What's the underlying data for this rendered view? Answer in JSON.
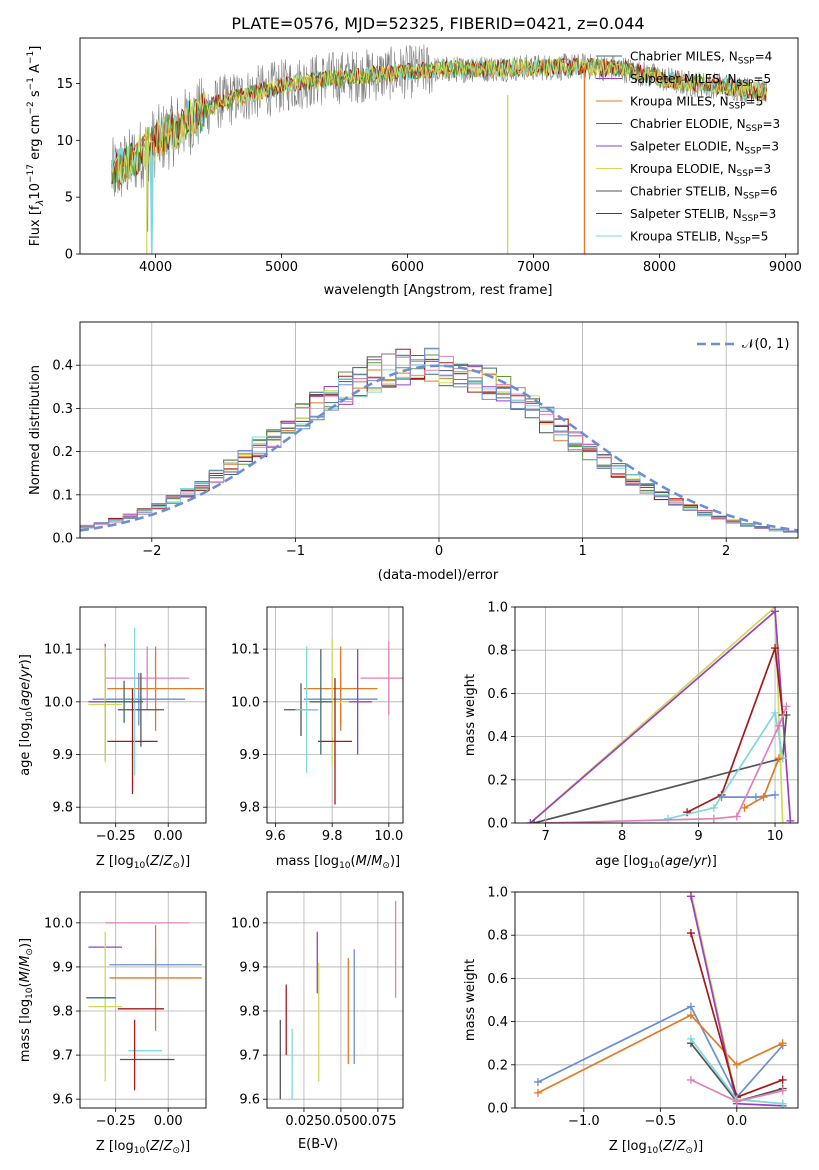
{
  "title": "PLATE=0576, MJD=52325, FIBERID=0421, z=0.044",
  "colors": {
    "blue": "#6a8fd6",
    "orange": "#e07b27",
    "teal": "#3f6f6f",
    "purple": "#9a3fc2",
    "yellow": "#cfd95a",
    "darkgray": "#555555",
    "red": "#a31a1a",
    "pink": "#e080b8",
    "cyan": "#7dd9dc",
    "grayspec": "#808080",
    "green": "#5a9a3a",
    "lime": "#b8d85a"
  },
  "chart_data": [
    {
      "id": "spectrum",
      "type": "line",
      "xlabel": "wavelength [Angstrom, rest frame]",
      "ylabel": "Flux [f_λ 10^-17 erg cm^-2 s^-1 A^-1]",
      "ylabel_parts": [
        "Flux [f",
        "λ",
        "10",
        "−17",
        " erg cm",
        "−2",
        " s",
        "−1",
        " A",
        "−1",
        "]"
      ],
      "xlim": [
        3400,
        9100
      ],
      "ylim": [
        0,
        19
      ],
      "xticks": [
        "4000",
        "5000",
        "6000",
        "7000",
        "8000",
        "9000"
      ],
      "yticks": [
        "0",
        "5",
        "10",
        "15"
      ],
      "legend_placement": "top-right",
      "legend": [
        {
          "pre": "Chabrier MILES, N",
          "sub": "SSP",
          "post": "=4",
          "color": "#3f6f6f"
        },
        {
          "pre": "Salpeter MILES, N",
          "sub": "SSP",
          "post": "=5",
          "color": "#9a3fc2"
        },
        {
          "pre": "Kroupa MILES, N",
          "sub": "SSP",
          "post": "=5",
          "color": "#e07b27"
        },
        {
          "pre": "Chabrier ELODIE, N",
          "sub": "SSP",
          "post": "=3",
          "color": "#3f6f6f"
        },
        {
          "pre": "Salpeter ELODIE, N",
          "sub": "SSP",
          "post": "=3",
          "color": "#9a3fc2"
        },
        {
          "pre": "Kroupa ELODIE, N",
          "sub": "SSP",
          "post": "=3",
          "color": "#cfd95a"
        },
        {
          "pre": "Chabrier STELIB, N",
          "sub": "SSP",
          "post": "=6",
          "color": "#555555"
        },
        {
          "pre": "Salpeter STELIB, N",
          "sub": "SSP",
          "post": "=3",
          "color": "#a31a1a"
        },
        {
          "pre": "Kroupa STELIB, N",
          "sub": "SSP",
          "post": "=5",
          "color": "#7dd9dc"
        }
      ],
      "continuum": [
        [
          3650,
          7
        ],
        [
          3800,
          8
        ],
        [
          3950,
          9.5
        ],
        [
          4100,
          10.5
        ],
        [
          4300,
          12
        ],
        [
          4500,
          13.3
        ],
        [
          4800,
          14.2
        ],
        [
          5100,
          15
        ],
        [
          5400,
          15.5
        ],
        [
          5800,
          15.8
        ],
        [
          6200,
          16.2
        ],
        [
          6600,
          16.3
        ],
        [
          7000,
          16.4
        ],
        [
          7400,
          16.5
        ],
        [
          7700,
          16.3
        ],
        [
          8000,
          15.5
        ],
        [
          8200,
          15
        ],
        [
          8500,
          14.8
        ],
        [
          8850,
          14.2
        ]
      ]
    },
    {
      "id": "residuals",
      "type": "histogram",
      "xlabel": "(data-model)/error",
      "ylabel": "Normed distribution",
      "xlim": [
        -2.5,
        2.5
      ],
      "ylim": [
        0,
        0.5
      ],
      "xticks": [
        "−2",
        "−1",
        "0",
        "1",
        "2"
      ],
      "yticks": [
        "0.0",
        "0.1",
        "0.2",
        "0.3",
        "0.4"
      ],
      "legend": "𝒩(0, 1)",
      "legend_placement": "top-right",
      "reference_curve": "N(0,1)",
      "bin_start": -2.5,
      "bin_width": 0.1
    },
    {
      "id": "age-vs-Z",
      "type": "errorbar",
      "xlabel": "Z [log10(Z/Z⊙)]",
      "ylabel": "age [log10(age/yr)]",
      "xlim": [
        -0.42,
        0.18
      ],
      "ylim": [
        9.77,
        10.18
      ],
      "xticks": [
        "−0.25",
        "0.00"
      ],
      "yticks": [
        "9.8",
        "9.9",
        "10.0",
        "10.1"
      ],
      "points": [
        {
          "x": -0.1,
          "y": 10.045,
          "xerr": 0.2,
          "yerr": 0.06,
          "color": "#e080b8"
        },
        {
          "x": -0.14,
          "y": 10.005,
          "xerr": 0.22,
          "yerr": 0.05,
          "color": "#6a8fd6"
        },
        {
          "x": -0.06,
          "y": 10.025,
          "xerr": 0.23,
          "yerr": 0.08,
          "color": "#e07b27"
        },
        {
          "x": -0.3,
          "y": 10.0,
          "xerr": 0.08,
          "yerr": 0.11,
          "color": "#9a3fc2"
        },
        {
          "x": -0.3,
          "y": 9.995,
          "xerr": 0.08,
          "yerr": 0.11,
          "color": "#cfd95a"
        },
        {
          "x": -0.13,
          "y": 9.985,
          "xerr": 0.11,
          "yerr": 0.07,
          "color": "#555555"
        },
        {
          "x": -0.17,
          "y": 9.925,
          "xerr": 0.12,
          "yerr": 0.1,
          "color": "#a31a1a"
        },
        {
          "x": -0.16,
          "y": 10.0,
          "xerr": 0.04,
          "yerr": 0.14,
          "color": "#7dd9dc"
        },
        {
          "x": -0.21,
          "y": 10.0,
          "xerr": 0.09,
          "yerr": 0.04,
          "color": "#3f6f6f"
        }
      ]
    },
    {
      "id": "age-vs-mass",
      "type": "errorbar",
      "xlabel": "mass [log10(M/M⊙)]",
      "ylabel": "",
      "xlim": [
        9.57,
        10.05
      ],
      "ylim": [
        9.77,
        10.18
      ],
      "xticks": [
        "9.6",
        "9.8",
        "10.0"
      ],
      "yticks": [
        "9.8",
        "9.9",
        "10.0",
        "10.1"
      ],
      "points": [
        {
          "x": 10.0,
          "y": 10.045,
          "xerr": 0.1,
          "yerr": 0.07,
          "color": "#e080b8"
        },
        {
          "x": 9.83,
          "y": 10.005,
          "xerr": 0.13,
          "yerr": 0.05,
          "color": "#6a8fd6"
        },
        {
          "x": 9.83,
          "y": 10.025,
          "xerr": 0.13,
          "yerr": 0.08,
          "color": "#e07b27"
        },
        {
          "x": 9.89,
          "y": 10.0,
          "xerr": 0.05,
          "yerr": 0.1,
          "color": "#9a3fc2"
        },
        {
          "x": 9.8,
          "y": 10.0,
          "xerr": 0.06,
          "yerr": 0.12,
          "color": "#cfd95a"
        },
        {
          "x": 9.69,
          "y": 9.985,
          "xerr": 0.06,
          "yerr": 0.05,
          "color": "#555555"
        },
        {
          "x": 9.81,
          "y": 9.925,
          "xerr": 0.06,
          "yerr": 0.12,
          "color": "#a31a1a"
        },
        {
          "x": 9.71,
          "y": 9.985,
          "xerr": 0.04,
          "yerr": 0.12,
          "color": "#7dd9dc"
        },
        {
          "x": 9.76,
          "y": 10.0,
          "xerr": 0.04,
          "yerr": 0.1,
          "color": "#3f6f6f"
        }
      ]
    },
    {
      "id": "weight-vs-age",
      "type": "line",
      "xlabel": "age [log10(age/yr)]",
      "ylabel": "mass weight",
      "xlim": [
        6.6,
        10.3
      ],
      "ylim": [
        0,
        1
      ],
      "xticks": [
        "7",
        "8",
        "9",
        "10"
      ],
      "yticks": [
        "0.0",
        "0.2",
        "0.4",
        "0.6",
        "0.8",
        "1.0"
      ],
      "series": [
        {
          "color": "#cfd95a",
          "points": [
            [
              6.8,
              0
            ],
            [
              10.0,
              1.0
            ],
            [
              10.1,
              0
            ]
          ]
        },
        {
          "color": "#9a3fc2",
          "points": [
            [
              6.8,
              0
            ],
            [
              10.0,
              0.98
            ],
            [
              10.2,
              0.01
            ]
          ]
        },
        {
          "color": "#555555",
          "points": [
            [
              6.85,
              0
            ],
            [
              10.1,
              0.3
            ],
            [
              10.15,
              0.5
            ]
          ]
        },
        {
          "color": "#a31a1a",
          "points": [
            [
              8.85,
              0.05
            ],
            [
              9.3,
              0.13
            ],
            [
              10.0,
              0.81
            ],
            [
              10.1,
              0.5
            ]
          ]
        },
        {
          "color": "#7dd9dc",
          "points": [
            [
              8.6,
              0.02
            ],
            [
              9.2,
              0.07
            ],
            [
              10.0,
              0.51
            ],
            [
              10.1,
              0.3
            ]
          ]
        },
        {
          "color": "#6a8fd6",
          "points": [
            [
              9.3,
              0.12
            ],
            [
              9.75,
              0.12
            ],
            [
              10.0,
              0.13
            ]
          ]
        },
        {
          "color": "#e07b27",
          "points": [
            [
              9.6,
              0.07
            ],
            [
              9.85,
              0.12
            ],
            [
              10.05,
              0.3
            ]
          ]
        },
        {
          "color": "#e080b8",
          "points": [
            [
              7.0,
              0
            ],
            [
              9.2,
              0.02
            ],
            [
              9.5,
              0.03
            ],
            [
              10.05,
              0.45
            ],
            [
              10.15,
              0.54
            ]
          ]
        }
      ]
    },
    {
      "id": "mass-vs-Z",
      "type": "errorbar",
      "xlabel": "Z [log10(Z/Z⊙)]",
      "ylabel": "mass [log10(M/M⊙)]",
      "xlim": [
        -0.42,
        0.18
      ],
      "ylim": [
        9.58,
        10.07
      ],
      "xticks": [
        "−0.25",
        "0.00"
      ],
      "yticks": [
        "9.6",
        "9.7",
        "9.8",
        "9.9",
        "10.0"
      ],
      "points": [
        {
          "x": -0.1,
          "y": 10.0,
          "xerr": 0.2,
          "yerr": 0.0,
          "color": "#e080b8"
        },
        {
          "x": -0.06,
          "y": 9.905,
          "xerr": 0.22,
          "yerr": 0.04,
          "color": "#6a8fd6"
        },
        {
          "x": -0.06,
          "y": 9.875,
          "xerr": 0.22,
          "yerr": 0.12,
          "color": "#e07b27"
        },
        {
          "x": -0.3,
          "y": 9.945,
          "xerr": 0.08,
          "yerr": 0.0,
          "color": "#9a3fc2"
        },
        {
          "x": -0.3,
          "y": 9.81,
          "xerr": 0.08,
          "yerr": 0.17,
          "color": "#cfd95a"
        },
        {
          "x": -0.32,
          "y": 9.83,
          "xerr": 0.07,
          "yerr": 0.0,
          "color": "#3f6f6f"
        },
        {
          "x": -0.13,
          "y": 9.805,
          "xerr": 0.11,
          "yerr": 0.0,
          "color": "#a31a1a"
        },
        {
          "x": -0.11,
          "y": 9.71,
          "xerr": 0.08,
          "yerr": 0.0,
          "color": "#7dd9dc"
        },
        {
          "x": -0.1,
          "y": 9.69,
          "xerr": 0.13,
          "yerr": 0.0,
          "color": "#555555"
        },
        {
          "x": -0.16,
          "y": 9.7,
          "xerr": 0.0,
          "yerr": 0.08,
          "color": "#a31a1a"
        }
      ]
    },
    {
      "id": "mass-vs-EBV",
      "type": "errorbar",
      "xlabel": "E(B-V)",
      "ylabel": "",
      "xlim": [
        0.0,
        0.092
      ],
      "ylim": [
        9.58,
        10.07
      ],
      "xticks": [
        "0.025",
        "0.050",
        "0.075"
      ],
      "yticks": [
        "9.6",
        "9.7",
        "9.8",
        "9.9",
        "10.0"
      ],
      "segments": [
        {
          "x": 0.009,
          "y0": 9.6,
          "y1": 9.78,
          "color": "#555555"
        },
        {
          "x": 0.013,
          "y0": 9.7,
          "y1": 9.86,
          "color": "#a31a1a"
        },
        {
          "x": 0.017,
          "y0": 9.6,
          "y1": 9.76,
          "color": "#7dd9dc"
        },
        {
          "x": 0.034,
          "y0": 9.84,
          "y1": 9.98,
          "color": "#9a3fc2"
        },
        {
          "x": 0.035,
          "y0": 9.64,
          "y1": 9.91,
          "color": "#cfd95a"
        },
        {
          "x": 0.055,
          "y0": 9.68,
          "y1": 9.92,
          "color": "#e07b27"
        },
        {
          "x": 0.059,
          "y0": 9.68,
          "y1": 9.94,
          "color": "#6a8fd6"
        },
        {
          "x": 0.087,
          "y0": 9.83,
          "y1": 10.05,
          "color": "#e080b8"
        }
      ]
    },
    {
      "id": "weight-vs-Z",
      "type": "line",
      "xlabel": "Z [log10(Z/Z⊙)]",
      "ylabel": "mass weight",
      "xlim": [
        -1.45,
        0.4
      ],
      "ylim": [
        0,
        1
      ],
      "xticks": [
        "−1.0",
        "−0.5",
        "0.0"
      ],
      "yticks": [
        "0.0",
        "0.2",
        "0.4",
        "0.6",
        "0.8",
        "1.0"
      ],
      "series": [
        {
          "color": "#6a8fd6",
          "points": [
            [
              -1.3,
              0.12
            ],
            [
              -0.3,
              0.47
            ],
            [
              0.0,
              0.05
            ],
            [
              0.3,
              0.29
            ]
          ]
        },
        {
          "color": "#e07b27",
          "points": [
            [
              -1.3,
              0.07
            ],
            [
              -0.3,
              0.43
            ],
            [
              0.0,
              0.2
            ],
            [
              0.3,
              0.3
            ]
          ]
        },
        {
          "color": "#cfd95a",
          "points": [
            [
              -0.3,
              1.0
            ],
            [
              0.0,
              0.04
            ],
            [
              0.3,
              0.02
            ]
          ]
        },
        {
          "color": "#9a3fc2",
          "points": [
            [
              -0.3,
              0.98
            ],
            [
              0.0,
              0.02
            ],
            [
              0.3,
              0.01
            ]
          ]
        },
        {
          "color": "#a31a1a",
          "points": [
            [
              -0.3,
              0.81
            ],
            [
              0.0,
              0.05
            ],
            [
              0.3,
              0.13
            ]
          ]
        },
        {
          "color": "#555555",
          "points": [
            [
              -0.3,
              0.3
            ],
            [
              0.0,
              0.03
            ],
            [
              0.3,
              0.09
            ]
          ]
        },
        {
          "color": "#7dd9dc",
          "points": [
            [
              -0.3,
              0.32
            ],
            [
              0.0,
              0.04
            ],
            [
              0.3,
              0.02
            ]
          ]
        },
        {
          "color": "#e080b8",
          "points": [
            [
              -0.3,
              0.13
            ],
            [
              0.0,
              0.03
            ],
            [
              0.3,
              0.08
            ]
          ]
        }
      ]
    }
  ]
}
